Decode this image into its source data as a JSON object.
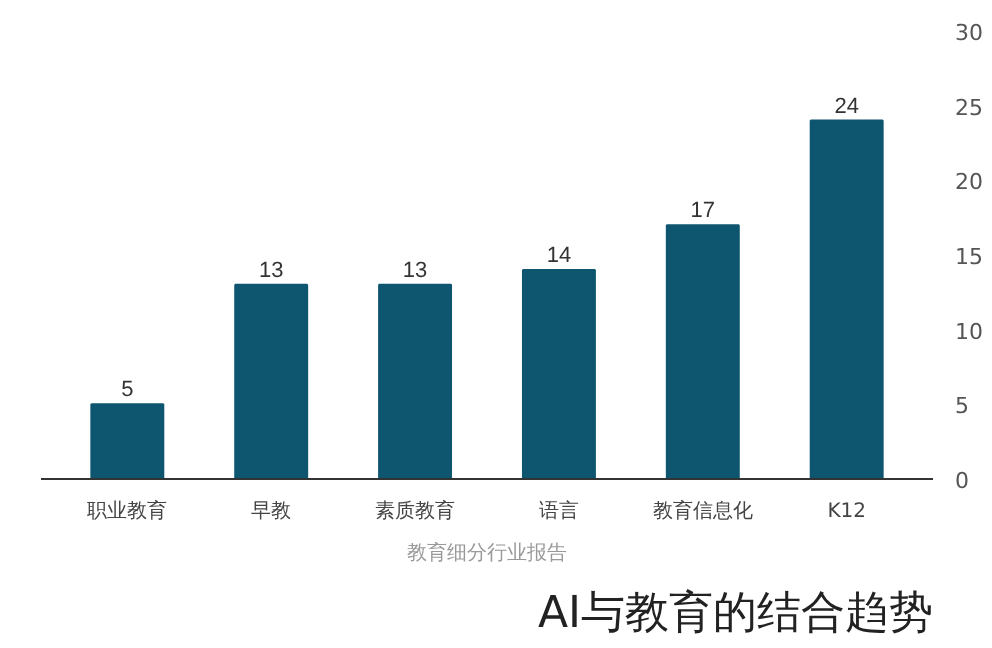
{
  "chart_data": {
    "type": "bar",
    "title": "AI与教育的结合趋势",
    "annotations": [
      "教育细分行业报告"
    ],
    "categories": [
      "职业教育",
      "早教",
      "素质教育",
      "语言",
      "教育信息化",
      "K12"
    ],
    "values": [
      5,
      13,
      13,
      14,
      17,
      24
    ],
    "color": "#0e5570",
    "ylim": [
      0,
      30
    ],
    "yticks": [
      0,
      5,
      10,
      15,
      20,
      25,
      30
    ],
    "data_labels": true,
    "grid": false
  }
}
